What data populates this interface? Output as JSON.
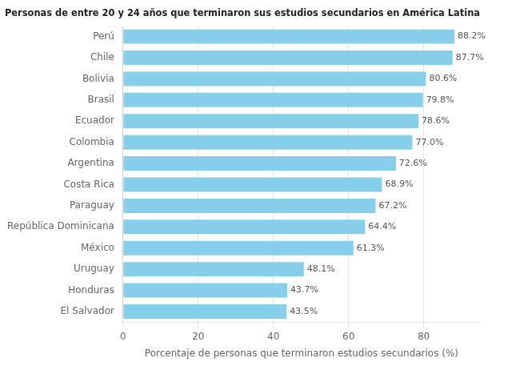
{
  "chart_data": {
    "type": "bar",
    "orientation": "horizontal",
    "title": "Personas de entre 20 y 24 años que terminaron sus estudios secundarios en América Latina",
    "xlabel": "Porcentaje de personas que terminaron estudios secundarios (%)",
    "categories": [
      "El Salvador",
      "Honduras",
      "Uruguay",
      "México",
      "República Dominicana",
      "Paraguay",
      "Costa Rica",
      "Argentina",
      "Colombia",
      "Ecuador",
      "Brasil",
      "Bolivia",
      "Chile",
      "Perú"
    ],
    "values": [
      43.5,
      43.7,
      48.1,
      61.3,
      64.4,
      67.2,
      68.9,
      72.6,
      77.0,
      78.6,
      79.8,
      80.6,
      87.7,
      88.2
    ],
    "value_labels": [
      "43.5%",
      "43.7%",
      "48.1%",
      "61.3%",
      "64.4%",
      "67.2%",
      "68.9%",
      "72.6%",
      "77.0%",
      "78.6%",
      "79.8%",
      "80.6%",
      "87.7%",
      "88.2%"
    ],
    "data_labels": true,
    "color": "#87CEEB",
    "xlim": [
      0,
      95
    ],
    "xticks": [
      0,
      20,
      40,
      60,
      80
    ],
    "grid": true
  }
}
